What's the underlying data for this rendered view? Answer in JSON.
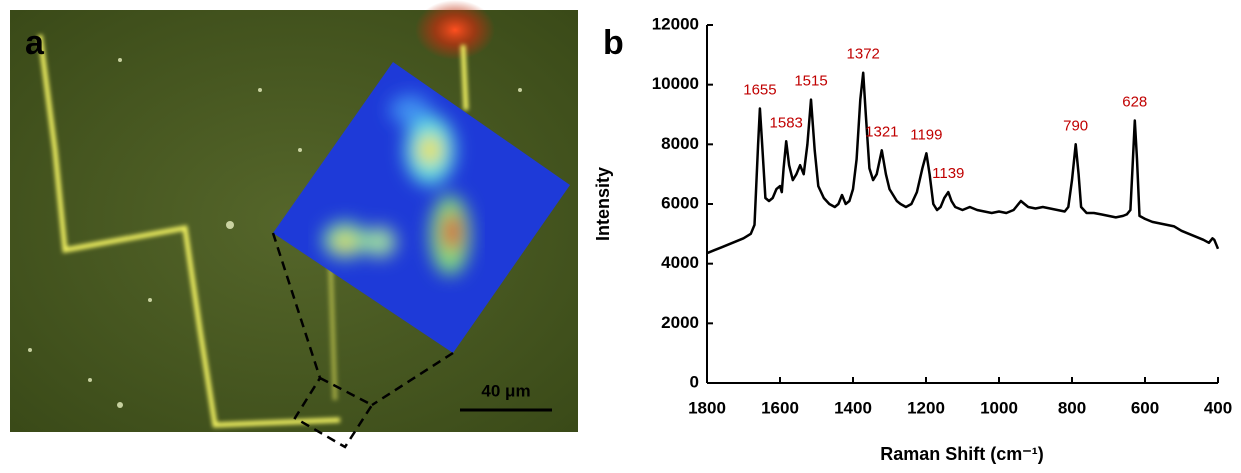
{
  "panel_a": {
    "label": "a",
    "scale_bar": "40 μm"
  },
  "chart_data": {
    "type": "line",
    "panel_label": "b",
    "x_label": "Raman Shift (cm⁻¹)",
    "y_label": "Intensity",
    "xlim": [
      1800,
      400
    ],
    "ylim": [
      0,
      12000
    ],
    "xticks": [
      1800,
      1600,
      1400,
      1200,
      1000,
      800,
      600,
      400
    ],
    "yticks": [
      0,
      2000,
      4000,
      6000,
      8000,
      10000,
      12000
    ],
    "color": "#000000",
    "peak_color": "#c00000",
    "peaks": [
      1655,
      1583,
      1515,
      1372,
      1321,
      1199,
      1139,
      790,
      628
    ],
    "x": [
      1800,
      1780,
      1760,
      1740,
      1720,
      1700,
      1680,
      1670,
      1660,
      1655,
      1650,
      1640,
      1630,
      1620,
      1610,
      1600,
      1595,
      1590,
      1583,
      1575,
      1565,
      1555,
      1545,
      1535,
      1525,
      1515,
      1505,
      1495,
      1480,
      1465,
      1450,
      1440,
      1430,
      1420,
      1410,
      1400,
      1390,
      1380,
      1372,
      1365,
      1355,
      1345,
      1335,
      1321,
      1310,
      1300,
      1290,
      1280,
      1270,
      1255,
      1240,
      1225,
      1210,
      1199,
      1190,
      1180,
      1170,
      1160,
      1150,
      1139,
      1130,
      1120,
      1100,
      1080,
      1060,
      1040,
      1020,
      1000,
      980,
      960,
      940,
      930,
      920,
      900,
      880,
      860,
      840,
      820,
      810,
      800,
      790,
      782,
      775,
      760,
      740,
      720,
      700,
      680,
      660,
      650,
      640,
      635,
      628,
      622,
      615,
      600,
      580,
      560,
      540,
      520,
      500,
      480,
      460,
      440,
      425,
      415,
      410,
      400
    ],
    "values": [
      4350,
      4450,
      4550,
      4650,
      4750,
      4850,
      5000,
      5300,
      8000,
      9200,
      8200,
      6200,
      6100,
      6200,
      6500,
      6600,
      6400,
      7200,
      8100,
      7300,
      6800,
      7000,
      7300,
      7000,
      8000,
      9500,
      7800,
      6600,
      6200,
      6000,
      5900,
      6000,
      6300,
      6000,
      6100,
      6500,
      7500,
      9500,
      10400,
      9000,
      7200,
      6800,
      7000,
      7800,
      7000,
      6500,
      6300,
      6100,
      6000,
      5900,
      6000,
      6400,
      7200,
      7700,
      7000,
      6000,
      5800,
      5900,
      6200,
      6400,
      6100,
      5900,
      5800,
      5900,
      5800,
      5750,
      5700,
      5750,
      5700,
      5800,
      6100,
      6000,
      5900,
      5850,
      5900,
      5850,
      5800,
      5750,
      5900,
      6800,
      8000,
      7000,
      5900,
      5700,
      5700,
      5650,
      5600,
      5550,
      5600,
      5650,
      5800,
      7000,
      8800,
      7500,
      5600,
      5500,
      5400,
      5350,
      5300,
      5250,
      5100,
      5000,
      4900,
      4800,
      4700,
      4850,
      4800,
      4500
    ]
  }
}
